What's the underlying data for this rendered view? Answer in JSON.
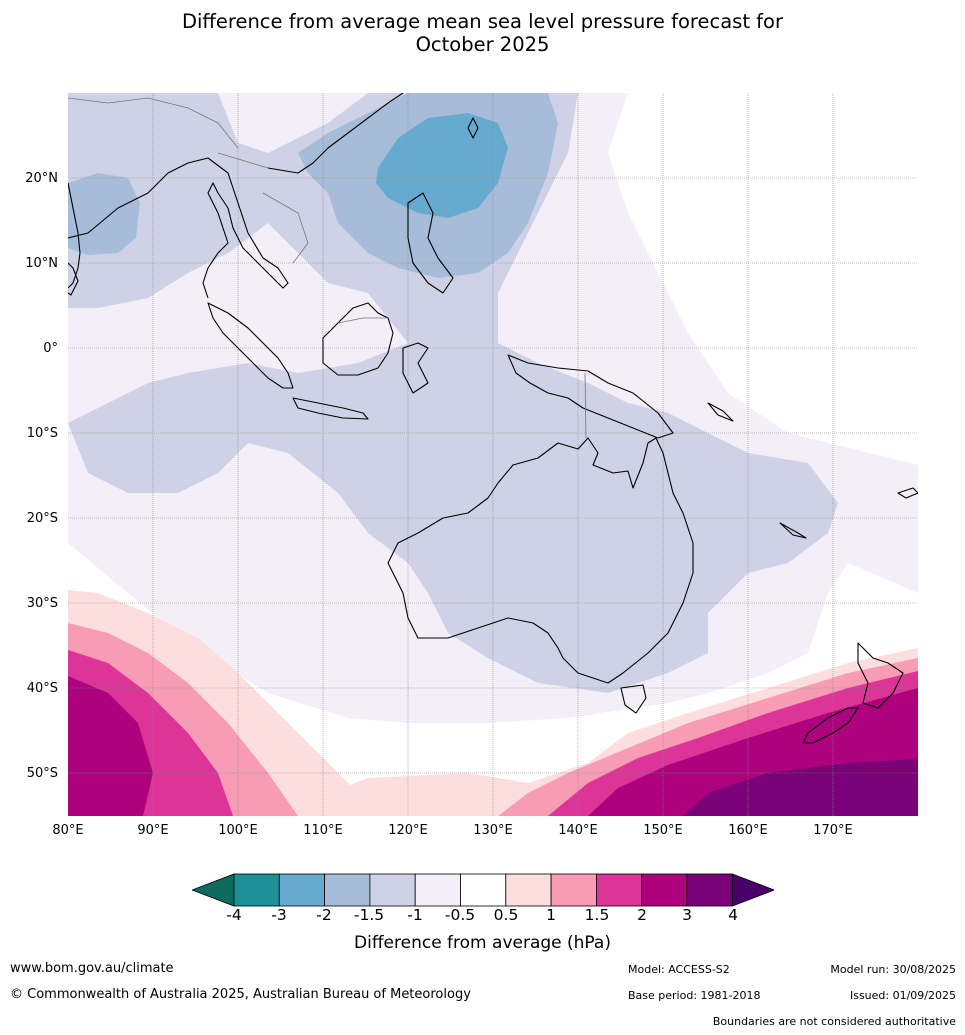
{
  "title_line1": "Difference from average mean sea level pressure forecast for",
  "title_line2": "October 2025",
  "lat_labels": [
    "20°N",
    "10°N",
    "0°",
    "10°S",
    "20°S",
    "30°S",
    "40°S",
    "50°S"
  ],
  "lon_labels": [
    "80°E",
    "90°E",
    "100°E",
    "110°E",
    "120°E",
    "130°E",
    "140°E",
    "150°E",
    "160°E",
    "170°E"
  ],
  "colorbar": {
    "ticks": [
      "-4",
      "-3",
      "-2",
      "-1.5",
      "-1",
      "-0.5",
      "0.5",
      "1",
      "1.5",
      "2",
      "3",
      "4"
    ],
    "colors": [
      "#0d6b5e",
      "#1e9196",
      "#67aad0",
      "#a7bcd8",
      "#cfd2e6",
      "#f3eef7",
      "#ffffff",
      "#fddede",
      "#f89bb4",
      "#dd3497",
      "#ae017e",
      "#7a0177",
      "#49006a"
    ],
    "label": "Difference from average (hPa)"
  },
  "footer": {
    "url": "www.bom.gov.au/climate",
    "copyright": "© Commonwealth of Australia 2025, Australian Bureau of Meteorology",
    "model": "Model: ACCESS-S2",
    "base_period": "Base period: 1981-2018",
    "model_run": "Model run: 30/08/2025",
    "issued": "Issued: 01/09/2025",
    "disclaimer": "Boundaries are not considered authoritative"
  }
}
